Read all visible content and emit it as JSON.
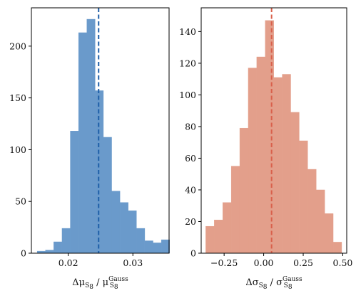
{
  "chart_data": [
    {
      "type": "bar",
      "subtype": "histogram",
      "color": "#6a9acb",
      "mean_line_color": "#1f5fa8",
      "mean_line_x": 0.0247,
      "bin_width": 0.00128,
      "bin_edges_start": 0.0152,
      "values": [
        2,
        3,
        11,
        24,
        118,
        213,
        226,
        157,
        112,
        60,
        49,
        41,
        24,
        12,
        10,
        13
      ],
      "xlim": [
        0.0143,
        0.0356
      ],
      "ylim": [
        0,
        237
      ],
      "xticks": [
        0.02,
        0.03
      ],
      "xtick_labels": [
        "0.02",
        "0.03"
      ],
      "yticks": [
        0,
        50,
        100,
        150,
        200
      ],
      "ytick_labels": [
        "0",
        "50",
        "100",
        "150",
        "200"
      ],
      "xlabel": {
        "delta": "Δμ",
        "sub": "S",
        "subsub": "8",
        "slash": " / μ",
        "sup": "Gauss",
        "sub2": "S",
        "subsub2": "8"
      },
      "ylabel": ""
    },
    {
      "type": "bar",
      "subtype": "histogram",
      "color": "#e39f8b",
      "mean_line_color": "#d9604b",
      "mean_line_x": 0.05,
      "bin_width": 0.0537,
      "bin_edges_start": -0.366,
      "values": [
        17,
        21,
        32,
        55,
        79,
        117,
        124,
        147,
        111,
        113,
        89,
        71,
        53,
        40,
        25,
        7
      ],
      "xlim": [
        -0.395,
        0.525
      ],
      "ylim": [
        0,
        155
      ],
      "xticks": [
        -0.25,
        0.0,
        0.25,
        0.5
      ],
      "xtick_labels": [
        "−0.25",
        "0.00",
        "0.25",
        "0.50"
      ],
      "yticks": [
        0,
        20,
        40,
        60,
        80,
        100,
        120,
        140
      ],
      "ytick_labels": [
        "0",
        "20",
        "40",
        "60",
        "80",
        "100",
        "120",
        "140"
      ],
      "xlabel": {
        "delta": "Δσ",
        "sub": "S",
        "subsub": "8",
        "slash": " / σ",
        "sup": "Gauss",
        "sub2": "S",
        "subsub2": "8"
      },
      "ylabel": ""
    }
  ]
}
